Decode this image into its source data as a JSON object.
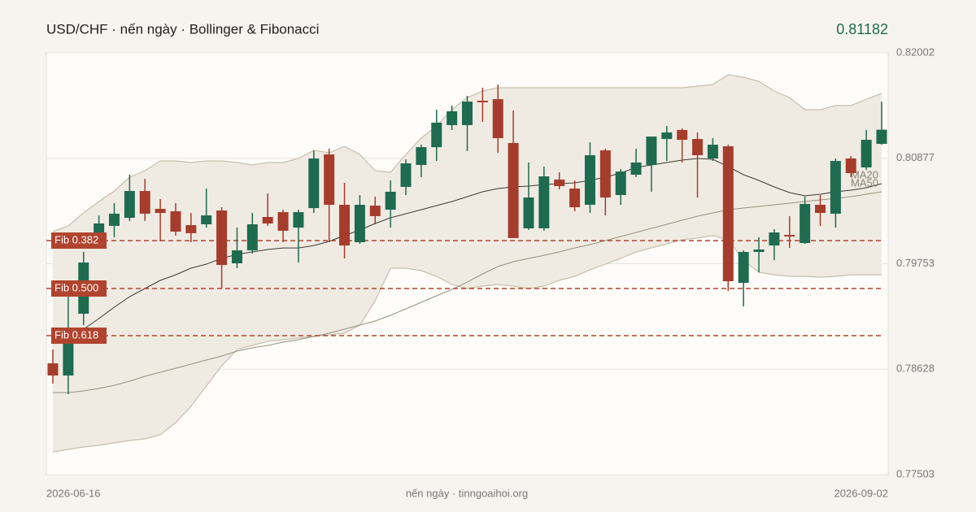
{
  "chart_data": {
    "type": "candlestick",
    "title": "USD/CHF · nến ngày · Bollinger & Fibonacci",
    "last_value": 0.81182,
    "footer": "nến ngày · tinngoaihoi.org",
    "x": [
      "2026-06-16",
      null,
      null,
      null,
      null,
      null,
      null,
      null,
      null,
      null,
      null,
      null,
      null,
      null,
      null,
      null,
      null,
      null,
      null,
      null,
      null,
      null,
      null,
      null,
      null,
      null,
      null,
      null,
      null,
      null,
      null,
      null,
      null,
      null,
      null,
      null,
      null,
      null,
      null,
      null,
      null,
      null,
      null,
      null,
      null,
      null,
      null,
      null,
      null,
      null,
      null,
      null,
      null,
      null,
      "2026-09-02"
    ],
    "open": [
      0.7869,
      0.7856,
      0.79219,
      0.80008,
      0.80156,
      0.80242,
      0.80528,
      0.80338,
      0.80312,
      0.80164,
      0.80173,
      0.8032,
      0.79757,
      0.79895,
      0.80251,
      0.80303,
      0.80138,
      0.80346,
      0.80918,
      0.80381,
      0.79982,
      0.80372,
      0.80329,
      0.80572,
      0.80806,
      0.80996,
      0.81231,
      0.81231,
      0.81491,
      0.81508,
      0.8104,
      0.8013,
      0.8013,
      0.8065,
      0.80554,
      0.80381,
      0.80962,
      0.80485,
      0.80702,
      0.80806,
      0.81083,
      0.81179,
      0.81083,
      0.80875,
      0.81005,
      0.79549,
      0.79878,
      0.79947,
      0.8006,
      0.79973,
      0.80381,
      0.80286,
      0.80875,
      0.8078,
      0.81031
    ],
    "high": [
      0.78838,
      0.79401,
      0.79878,
      0.80268,
      0.80398,
      0.80702,
      0.80658,
      0.80442,
      0.80398,
      0.80294,
      0.80554,
      0.80355,
      0.80138,
      0.80294,
      0.80502,
      0.80329,
      0.80329,
      0.80962,
      0.80979,
      0.80615,
      0.80485,
      0.80468,
      0.80641,
      0.80866,
      0.81022,
      0.81395,
      0.81439,
      0.81543,
      0.81629,
      0.81664,
      0.81387,
      0.80832,
      0.80788,
      0.80728,
      0.80641,
      0.81048,
      0.80979,
      0.80762,
      0.80979,
      0.81109,
      0.81222,
      0.81196,
      0.81153,
      0.81092,
      0.81022,
      0.79895,
      0.80034,
      0.80121,
      0.8026,
      0.80468,
      0.80485,
      0.80875,
      0.80901,
      0.81179,
      0.81482
    ],
    "low": [
      0.78474,
      0.78361,
      0.79098,
      0.79965,
      0.80034,
      0.80208,
      0.80208,
      0.79991,
      0.80052,
      0.79982,
      0.80138,
      0.79488,
      0.79705,
      0.79861,
      0.80156,
      0.79982,
      0.79765,
      0.80294,
      0.79982,
      0.79809,
      0.79965,
      0.80173,
      0.80138,
      0.80485,
      0.80676,
      0.80849,
      0.81179,
      0.80953,
      0.81265,
      0.80936,
      0.80026,
      0.80112,
      0.80104,
      0.80546,
      0.80312,
      0.80294,
      0.80268,
      0.80381,
      0.80676,
      0.8052,
      0.80849,
      0.80832,
      0.80459,
      0.80849,
      0.79462,
      0.79297,
      0.79661,
      0.79791,
      0.79921,
      0.79965,
      0.80156,
      0.80138,
      0.80676,
      0.80754,
      0.81022
    ],
    "close": [
      0.7856,
      0.78985,
      0.79765,
      0.80182,
      0.80286,
      0.80528,
      0.80286,
      0.80294,
      0.80095,
      0.80078,
      0.80268,
      0.79739,
      0.79895,
      0.80173,
      0.80182,
      0.80104,
      0.80303,
      0.80875,
      0.80381,
      0.79947,
      0.80381,
      0.8026,
      0.8052,
      0.80823,
      0.80996,
      0.81257,
      0.81378,
      0.81482,
      0.81482,
      0.81092,
      0.80026,
      0.80459,
      0.80684,
      0.8058,
      0.80355,
      0.8091,
      0.80459,
      0.80736,
      0.80832,
      0.81109,
      0.81153,
      0.81074,
      0.8091,
      0.81022,
      0.79566,
      0.79878,
      0.79904,
      0.80086,
      0.80043,
      0.8039,
      0.80294,
      0.80849,
      0.80719,
      0.81074,
      0.81182
    ],
    "up_color": "#1e6b50",
    "down_color": "#a63c2c",
    "bollinger": {
      "fill": "#efebe2",
      "stroke": "#c8bfae",
      "upper": [
        0.80095,
        0.80156,
        0.80294,
        0.80416,
        0.80528,
        0.80676,
        0.80745,
        0.80849,
        0.80849,
        0.80832,
        0.80849,
        0.80849,
        0.80832,
        0.80806,
        0.80832,
        0.80832,
        0.80875,
        0.80962,
        0.80936,
        0.81005,
        0.80918,
        0.80745,
        0.80728,
        0.80918,
        0.81092,
        0.81222,
        0.81395,
        0.81525,
        0.81595,
        0.81629,
        0.81629,
        0.81629,
        0.81629,
        0.81629,
        0.81629,
        0.81629,
        0.81629,
        0.81629,
        0.81629,
        0.81629,
        0.81629,
        0.81629,
        0.81647,
        0.81664,
        0.81768,
        0.81742,
        0.81699,
        0.81595,
        0.81525,
        0.81395,
        0.81395,
        0.81439,
        0.81439,
        0.81508,
        0.81569
      ],
      "lower": [
        0.77746,
        0.77772,
        0.77798,
        0.77815,
        0.77841,
        0.77867,
        0.77884,
        0.77928,
        0.78058,
        0.78231,
        0.78448,
        0.78664,
        0.78838,
        0.78881,
        0.78925,
        0.78942,
        0.78959,
        0.78977,
        0.78994,
        0.79011,
        0.79098,
        0.79358,
        0.79705,
        0.79705,
        0.79679,
        0.79618,
        0.79531,
        0.79488,
        0.79514,
        0.79531,
        0.79514,
        0.79488,
        0.79514,
        0.79575,
        0.79618,
        0.79687,
        0.79748,
        0.79809,
        0.79878,
        0.79921,
        0.79965,
        0.80008,
        0.80026,
        0.80052,
        0.80008,
        0.79791,
        0.79661,
        0.79635,
        0.79618,
        0.79618,
        0.79609,
        0.79618,
        0.79635,
        0.79635,
        0.79635
      ]
    },
    "series": [
      {
        "name": "MA20",
        "color": "#3d3a35",
        "values": [
          0.78942,
          0.78968,
          0.79055,
          0.79167,
          0.79289,
          0.79401,
          0.79488,
          0.79575,
          0.79635,
          0.79705,
          0.79748,
          0.79809,
          0.79852,
          0.79878,
          0.79904,
          0.79921,
          0.79921,
          0.79947,
          0.79991,
          0.80052,
          0.80112,
          0.80182,
          0.80242,
          0.80286,
          0.80329,
          0.80372,
          0.80416,
          0.80468,
          0.8052,
          0.80554,
          0.80572,
          0.8058,
          0.80598,
          0.80606,
          0.80615,
          0.80641,
          0.80676,
          0.80719,
          0.8078,
          0.80806,
          0.80832,
          0.80858,
          0.80875,
          0.80866,
          0.80788,
          0.80702,
          0.80641,
          0.80572,
          0.80511,
          0.80476,
          0.80494,
          0.8052,
          0.80537,
          0.80563,
          0.80606
        ]
      },
      {
        "name": "MA50",
        "color": "#9a9080",
        "values": [
          0.78378,
          0.78378,
          0.78396,
          0.78422,
          0.78456,
          0.785,
          0.78552,
          0.78595,
          0.78638,
          0.78682,
          0.78725,
          0.78768,
          0.78821,
          0.78855,
          0.78881,
          0.78916,
          0.78942,
          0.78977,
          0.79011,
          0.79055,
          0.79098,
          0.79141,
          0.79202,
          0.79271,
          0.79341,
          0.7941,
          0.79479,
          0.79557,
          0.79644,
          0.79722,
          0.79774,
          0.79809,
          0.79843,
          0.79878,
          0.79921,
          0.79956,
          0.79999,
          0.80043,
          0.80086,
          0.8013,
          0.80173,
          0.80216,
          0.8026,
          0.80294,
          0.80329,
          0.80346,
          0.80364,
          0.80381,
          0.80398,
          0.80416,
          0.80433,
          0.8045,
          0.80468,
          0.80494,
          0.8052
        ]
      }
    ],
    "fib_levels": [
      {
        "label": "Fib 0.382",
        "value": 0.79999
      },
      {
        "label": "Fib 0.500",
        "value": 0.79488
      },
      {
        "label": "Fib 0.618",
        "value": 0.78985
      }
    ],
    "fib_color": "#b0442e",
    "ylim": [
      0.77503,
      0.82002
    ],
    "yticks": [
      0.82002,
      0.80877,
      0.79753,
      0.78628,
      0.77503
    ],
    "grid": true
  }
}
